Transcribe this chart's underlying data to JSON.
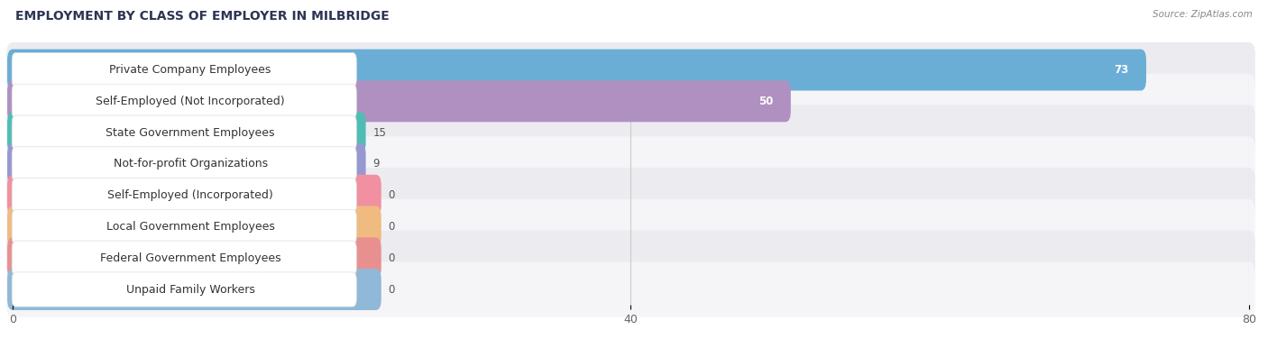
{
  "title": "EMPLOYMENT BY CLASS OF EMPLOYER IN MILBRIDGE",
  "source": "Source: ZipAtlas.com",
  "categories": [
    "Private Company Employees",
    "Self-Employed (Not Incorporated)",
    "State Government Employees",
    "Not-for-profit Organizations",
    "Self-Employed (Incorporated)",
    "Local Government Employees",
    "Federal Government Employees",
    "Unpaid Family Workers"
  ],
  "values": [
    73,
    50,
    15,
    9,
    0,
    0,
    0,
    0
  ],
  "bar_colors": [
    "#6aaed6",
    "#b090c0",
    "#50bdb5",
    "#9898d0",
    "#f090a0",
    "#f0bb80",
    "#e89090",
    "#90b8d8"
  ],
  "label_bg_colors": [
    "#ffffff",
    "#ffffff",
    "#ffffff",
    "#ffffff",
    "#ffffff",
    "#ffffff",
    "#ffffff",
    "#ffffff"
  ],
  "row_bg_odd": "#ebebf0",
  "row_bg_even": "#f5f5f8",
  "xlim": [
    0,
    80
  ],
  "xticks": [
    0,
    40,
    80
  ],
  "title_fontsize": 10,
  "label_fontsize": 9,
  "value_fontsize": 8.5,
  "bar_height": 0.62,
  "background_color": "#ffffff"
}
